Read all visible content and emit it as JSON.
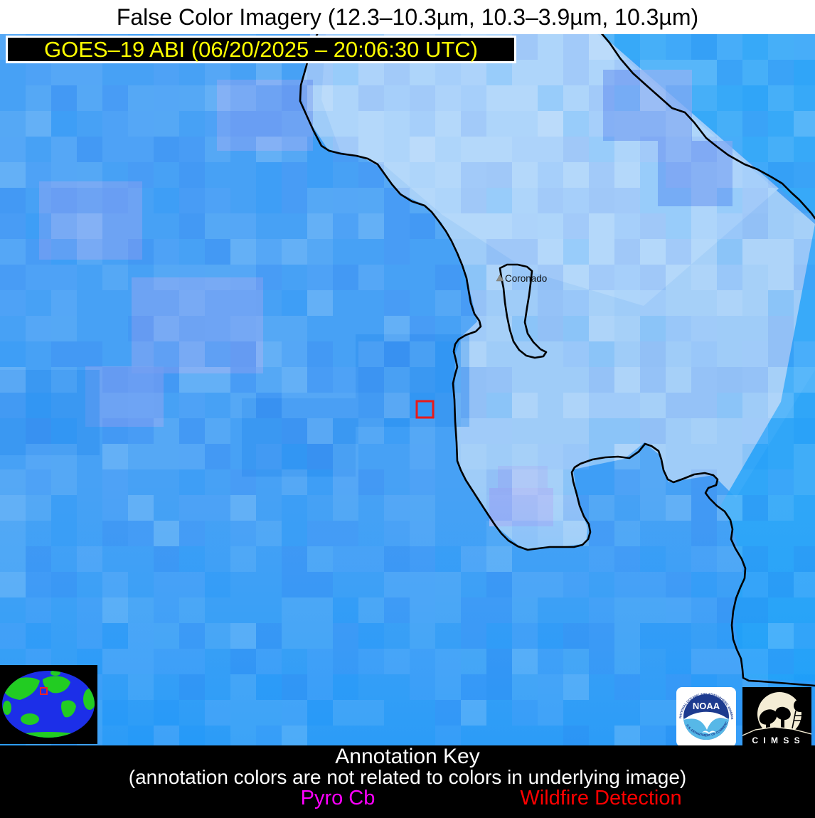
{
  "title": "False Color Imagery (12.3–10.3µm, 10.3–3.9µm, 10.3µm)",
  "banner": {
    "text": "GOES–19 ABI (06/20/2025 – 20:06:30 UTC)",
    "text_color": "#ffff00",
    "bg_color": "#000000"
  },
  "map": {
    "place_label": "Coronado",
    "coastline_color": "#000000",
    "wildfire_marker_color": "#e81a1a"
  },
  "inset": {
    "ocean_color": "#1c2fe8",
    "land_color": "#22cc22",
    "marker_color": "#ee2222",
    "bg_color": "#000000"
  },
  "logos": {
    "noaa": {
      "name": "NOAA",
      "arc_top": "NATIONAL OCEANIC AND ATMOSPHERIC ADMINISTRATION",
      "arc_bottom": "U.S. DEPARTMENT OF COMMERCE"
    },
    "cimss": {
      "name": "C I M S S"
    }
  },
  "annotation_key": {
    "title": "Annotation Key",
    "subtitle": "(annotation colors are not related to colors in underlying image)",
    "items": [
      {
        "label": "Pyro Cb",
        "color": "#ff00ff"
      },
      {
        "label": "Wildfire Detection",
        "color": "#ff0000"
      }
    ]
  },
  "palette": {
    "base_blue": "#47a1f5",
    "light_zone": "#9fccf8",
    "pale_zone": "#b0d6fa",
    "cyan_ne": "#37a9f8",
    "cyan_right": "#2ea6f8",
    "periwinkle": "#7aa4f2",
    "lavender": "#a3b6f5",
    "mosaic_tints": [
      {
        "color": "rgba(255,255,255,0)",
        "w": 0.3
      },
      {
        "color": "rgba(255,255,255,0.08)",
        "w": 0.14
      },
      {
        "color": "rgba(255,255,255,0.16)",
        "w": 0.08
      },
      {
        "color": "rgba(120,170,255,0.14)",
        "w": 0.12
      },
      {
        "color": "rgba(80,120,245,0.12)",
        "w": 0.1
      },
      {
        "color": "rgba(40,90,235,0.10)",
        "w": 0.08
      },
      {
        "color": "rgba(0,140,255,0.12)",
        "w": 0.1
      },
      {
        "color": "rgba(170,200,255,0.15)",
        "w": 0.08
      }
    ]
  }
}
